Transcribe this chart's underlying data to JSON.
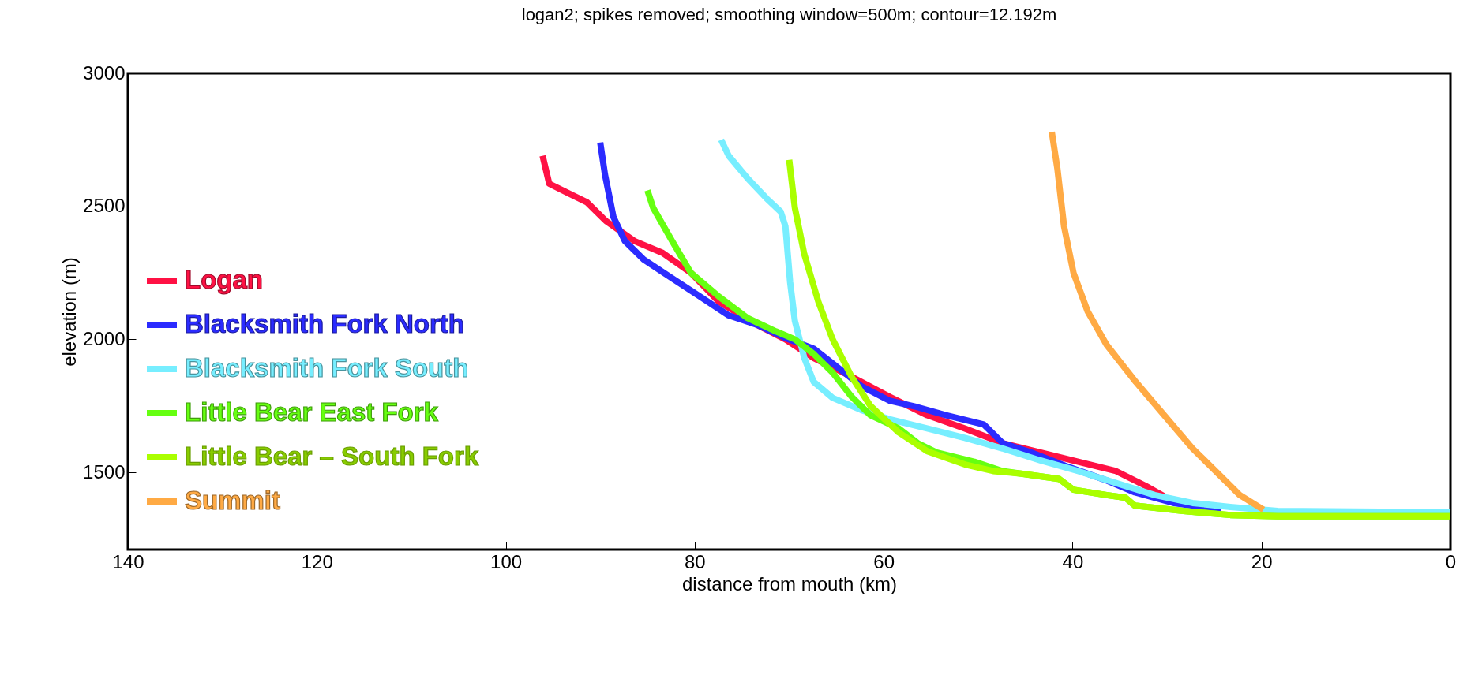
{
  "chart_data": {
    "type": "line",
    "title": "logan2; spikes removed; smoothing window=500m; contour=12.192m",
    "xlabel": "distance from mouth (km)",
    "ylabel": "elevation (m)",
    "xlim": [
      140,
      0
    ],
    "xticks": [
      140,
      120,
      100,
      80,
      60,
      40,
      20,
      0
    ],
    "ylim": [
      1210,
      3000
    ],
    "yticks": [
      1500,
      2000,
      2500,
      3000
    ],
    "grid": false,
    "legend": "left",
    "line_style": "solid",
    "marker": "none",
    "series": [
      {
        "name": "Logan",
        "color": "#ff1144",
        "x": [
          96.1,
          95.4,
          93.4,
          91.4,
          89.4,
          86.4,
          83.4,
          80.4,
          77.4,
          73.4,
          70.4,
          67.4,
          63.4,
          59.4,
          55.4,
          51.4,
          47.4,
          43.4,
          39.4,
          35.4,
          32.3,
          30.3
        ],
        "values": [
          2690,
          2585,
          2550,
          2515,
          2445,
          2370,
          2325,
          2250,
          2140,
          2055,
          2000,
          1930,
          1860,
          1785,
          1715,
          1665,
          1610,
          1575,
          1540,
          1505,
          1450,
          1410
        ]
      },
      {
        "name": "Blacksmith Fork North",
        "color": "#2b2bff",
        "x": [
          90.0,
          89.5,
          88.6,
          87.4,
          85.4,
          82.4,
          79.4,
          76.4,
          73.4,
          70.4,
          67.4,
          65.4,
          62.4,
          59.4,
          56.4,
          53.4,
          49.4,
          47.4,
          44.4,
          40.4,
          36.4,
          33.4,
          29.3,
          24.3
        ],
        "values": [
          2740,
          2620,
          2460,
          2370,
          2300,
          2230,
          2160,
          2090,
          2055,
          2005,
          1965,
          1910,
          1825,
          1770,
          1745,
          1715,
          1680,
          1610,
          1575,
          1520,
          1470,
          1425,
          1385,
          1360
        ]
      },
      {
        "name": "Blacksmith Fork South",
        "color": "#77eeff",
        "x": [
          77.2,
          76.4,
          74.4,
          72.4,
          70.9,
          70.4,
          69.9,
          69.4,
          68.4,
          67.4,
          65.4,
          62.4,
          59.4,
          55.4,
          51.4,
          47.4,
          43.4,
          39.4,
          35.4,
          31.3,
          27.3,
          23.3,
          18.3,
          0
        ],
        "values": [
          2750,
          2690,
          2605,
          2530,
          2480,
          2425,
          2215,
          2070,
          1930,
          1840,
          1780,
          1735,
          1700,
          1665,
          1630,
          1590,
          1545,
          1505,
          1460,
          1415,
          1385,
          1370,
          1355,
          1350
        ]
      },
      {
        "name": "Little Bear East Fork",
        "color": "#66ff11",
        "x": [
          85.0,
          84.4,
          82.4,
          80.4,
          77.4,
          74.4,
          71.4,
          69.4,
          67.4,
          65.4,
          63.4,
          61.4,
          58.4,
          56.4,
          54.4,
          50.4,
          47.4,
          41.4,
          39.9,
          36.4,
          34.4,
          33.4,
          28.3,
          23.3,
          18.3,
          0
        ],
        "values": [
          2560,
          2495,
          2370,
          2250,
          2160,
          2080,
          2030,
          2000,
          1945,
          1875,
          1785,
          1715,
          1665,
          1610,
          1575,
          1540,
          1505,
          1475,
          1435,
          1415,
          1405,
          1375,
          1355,
          1340,
          1335,
          1335
        ]
      },
      {
        "name": "Little Bear – South Fork",
        "color": "#aaff00",
        "x": [
          70.0,
          69.4,
          68.4,
          66.9,
          65.4,
          63.4,
          61.4,
          58.4,
          55.4,
          51.4,
          48.4,
          45.4,
          41.4,
          39.9,
          36.4,
          34.4,
          33.4,
          28.3,
          23.3,
          18.3,
          0
        ],
        "values": [
          2675,
          2495,
          2320,
          2140,
          2000,
          1860,
          1750,
          1650,
          1580,
          1530,
          1505,
          1495,
          1475,
          1435,
          1415,
          1405,
          1375,
          1355,
          1340,
          1335,
          1335
        ]
      },
      {
        "name": "Summit",
        "color": "#ffaa44",
        "x": [
          42.2,
          41.6,
          40.9,
          39.9,
          38.4,
          36.4,
          33.3,
          30.3,
          27.3,
          24.3,
          22.3,
          19.8
        ],
        "values": [
          2780,
          2640,
          2425,
          2250,
          2105,
          1980,
          1840,
          1715,
          1590,
          1485,
          1415,
          1360
        ]
      }
    ]
  }
}
